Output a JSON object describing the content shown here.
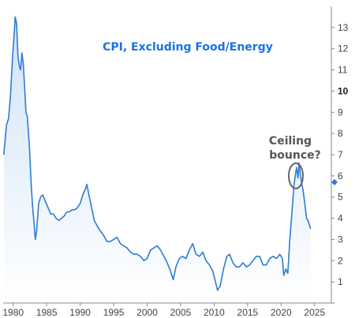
{
  "chart_data": {
    "type": "area",
    "title": "CPI, Excluding Food/Energy",
    "xlabel": "",
    "ylabel": "",
    "xlim": [
      1978.5,
      2027.5
    ],
    "ylim": [
      0,
      14
    ],
    "x_ticks": [
      "1980",
      "1985",
      "1990",
      "1995",
      "2000",
      "2005",
      "2010",
      "2015",
      "2020",
      "2025"
    ],
    "y_ticks": [
      "1",
      "2",
      "3",
      "4",
      "5",
      "6",
      "7",
      "8",
      "9",
      "10",
      "11",
      "12",
      "13"
    ],
    "y_tick_bold": "10",
    "grid": false,
    "annotation": {
      "text_line1": "Ceiling",
      "text_line2": "bounce?",
      "x": 2022.2,
      "y": 6.0
    },
    "last_value_marker": {
      "x": 2024.5,
      "y": 5.7
    },
    "series": [
      {
        "values": [
          [
            1978.6,
            7.0
          ],
          [
            1979.0,
            8.4
          ],
          [
            1979.3,
            8.7
          ],
          [
            1979.6,
            9.8
          ],
          [
            1979.9,
            11.6
          ],
          [
            1980.1,
            12.5
          ],
          [
            1980.3,
            13.5
          ],
          [
            1980.5,
            13.2
          ],
          [
            1980.7,
            11.7
          ],
          [
            1980.9,
            11.2
          ],
          [
            1981.1,
            11.0
          ],
          [
            1981.3,
            11.8
          ],
          [
            1981.5,
            11.3
          ],
          [
            1981.7,
            10.2
          ],
          [
            1981.9,
            9.0
          ],
          [
            1982.1,
            8.8
          ],
          [
            1982.4,
            7.5
          ],
          [
            1982.7,
            5.5
          ],
          [
            1982.9,
            4.5
          ],
          [
            1983.1,
            3.8
          ],
          [
            1983.3,
            3.0
          ],
          [
            1983.5,
            3.4
          ],
          [
            1983.8,
            4.7
          ],
          [
            1984.1,
            5.0
          ],
          [
            1984.4,
            5.1
          ],
          [
            1984.8,
            4.8
          ],
          [
            1985.2,
            4.5
          ],
          [
            1985.6,
            4.2
          ],
          [
            1986.0,
            4.2
          ],
          [
            1986.4,
            4.0
          ],
          [
            1986.8,
            3.9
          ],
          [
            1987.2,
            4.0
          ],
          [
            1987.6,
            4.1
          ],
          [
            1988.0,
            4.3
          ],
          [
            1988.4,
            4.3
          ],
          [
            1988.8,
            4.4
          ],
          [
            1989.2,
            4.4
          ],
          [
            1989.6,
            4.5
          ],
          [
            1990.0,
            4.7
          ],
          [
            1990.4,
            5.1
          ],
          [
            1990.8,
            5.4
          ],
          [
            1991.0,
            5.6
          ],
          [
            1991.3,
            5.1
          ],
          [
            1991.7,
            4.5
          ],
          [
            1992.1,
            3.9
          ],
          [
            1992.6,
            3.6
          ],
          [
            1993.0,
            3.4
          ],
          [
            1993.5,
            3.2
          ],
          [
            1994.0,
            2.9
          ],
          [
            1994.5,
            2.9
          ],
          [
            1995.0,
            3.0
          ],
          [
            1995.5,
            3.1
          ],
          [
            1996.0,
            2.8
          ],
          [
            1996.5,
            2.7
          ],
          [
            1997.0,
            2.6
          ],
          [
            1997.5,
            2.4
          ],
          [
            1998.0,
            2.3
          ],
          [
            1998.5,
            2.3
          ],
          [
            1999.0,
            2.2
          ],
          [
            1999.5,
            2.0
          ],
          [
            2000.0,
            2.1
          ],
          [
            2000.5,
            2.5
          ],
          [
            2001.0,
            2.6
          ],
          [
            2001.5,
            2.7
          ],
          [
            2002.0,
            2.5
          ],
          [
            2002.5,
            2.2
          ],
          [
            2003.0,
            1.9
          ],
          [
            2003.5,
            1.5
          ],
          [
            2003.9,
            1.1
          ],
          [
            2004.3,
            1.7
          ],
          [
            2004.8,
            2.1
          ],
          [
            2005.3,
            2.2
          ],
          [
            2005.8,
            2.1
          ],
          [
            2006.3,
            2.5
          ],
          [
            2006.8,
            2.8
          ],
          [
            2007.3,
            2.3
          ],
          [
            2007.8,
            2.2
          ],
          [
            2008.3,
            2.4
          ],
          [
            2008.8,
            2.0
          ],
          [
            2009.3,
            1.8
          ],
          [
            2009.8,
            1.5
          ],
          [
            2010.2,
            1.0
          ],
          [
            2010.5,
            0.6
          ],
          [
            2010.9,
            0.8
          ],
          [
            2011.4,
            1.6
          ],
          [
            2011.9,
            2.2
          ],
          [
            2012.3,
            2.3
          ],
          [
            2012.8,
            1.9
          ],
          [
            2013.3,
            1.7
          ],
          [
            2013.8,
            1.7
          ],
          [
            2014.3,
            1.9
          ],
          [
            2014.8,
            1.7
          ],
          [
            2015.3,
            1.8
          ],
          [
            2015.8,
            2.0
          ],
          [
            2016.3,
            2.2
          ],
          [
            2016.8,
            2.2
          ],
          [
            2017.3,
            1.8
          ],
          [
            2017.8,
            1.8
          ],
          [
            2018.3,
            2.1
          ],
          [
            2018.8,
            2.2
          ],
          [
            2019.3,
            2.1
          ],
          [
            2019.8,
            2.3
          ],
          [
            2020.2,
            2.1
          ],
          [
            2020.4,
            1.3
          ],
          [
            2020.7,
            1.6
          ],
          [
            2021.0,
            1.4
          ],
          [
            2021.3,
            3.0
          ],
          [
            2021.6,
            4.2
          ],
          [
            2021.9,
            5.5
          ],
          [
            2022.1,
            6.0
          ],
          [
            2022.3,
            6.4
          ],
          [
            2022.5,
            5.9
          ],
          [
            2022.7,
            6.6
          ],
          [
            2022.9,
            6.0
          ],
          [
            2023.1,
            5.6
          ],
          [
            2023.3,
            5.3
          ],
          [
            2023.5,
            4.8
          ],
          [
            2023.8,
            4.0
          ],
          [
            2024.0,
            3.9
          ],
          [
            2024.4,
            3.5
          ]
        ]
      }
    ]
  },
  "colors": {
    "line": "#2e7bd6",
    "fill_top": "#cfe3f7",
    "fill_bottom": "#ffffff",
    "axis": "#888888",
    "marker": "#2e7bd6",
    "title": "#1a73e8",
    "annotation": "#555555"
  }
}
